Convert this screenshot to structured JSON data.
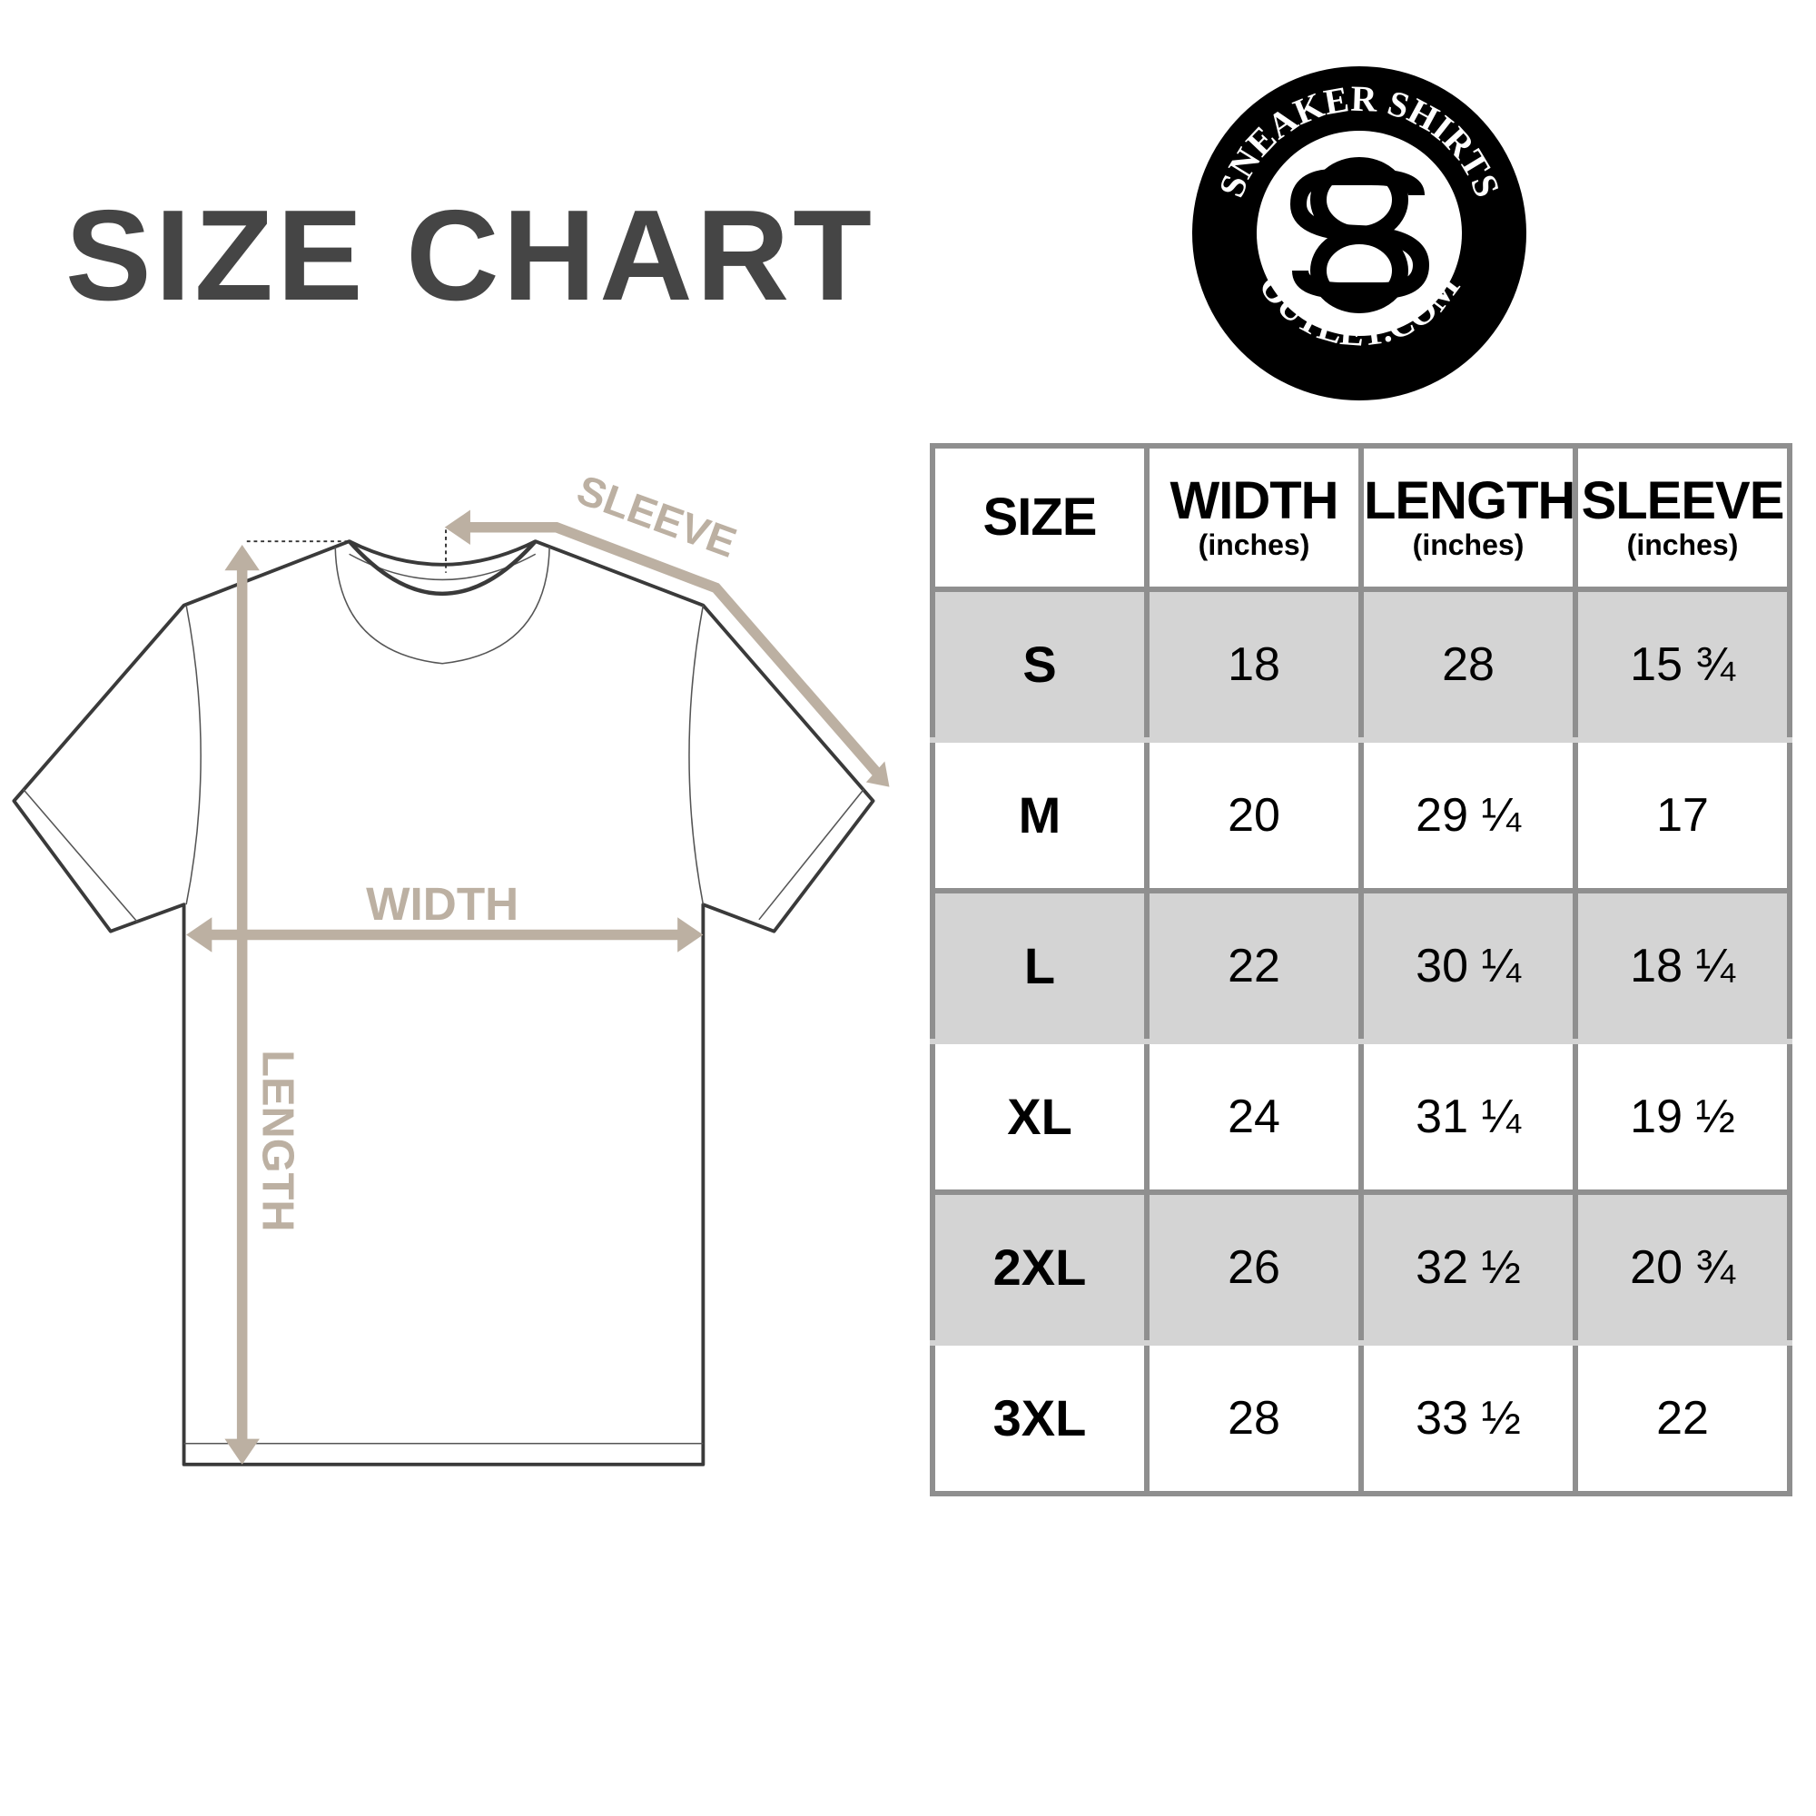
{
  "title": "SIZE CHART",
  "logo": {
    "top_text": "SNEAKER SHIRTS",
    "bottom_text": "OUTLET.COM",
    "monogram": "SO"
  },
  "diagram": {
    "sleeve_label": "SLEEVE",
    "width_label": "WIDTH",
    "length_label": "LENGTH",
    "accent_color": "#bcb0a2",
    "outline_color": "#3a3a3a"
  },
  "table": {
    "headers": [
      {
        "label": "SIZE",
        "unit": ""
      },
      {
        "label": "WIDTH",
        "unit": "(inches)"
      },
      {
        "label": "LENGTH",
        "unit": "(inches)"
      },
      {
        "label": "SLEEVE",
        "unit": "(inches)"
      }
    ],
    "rows": [
      [
        "S",
        "18",
        "28",
        "15 ¾"
      ],
      [
        "M",
        "20",
        "29 ¼",
        "17"
      ],
      [
        "L",
        "22",
        "30 ¼",
        "18 ¼"
      ],
      [
        "XL",
        "24",
        "31 ¼",
        "19 ½"
      ],
      [
        "2XL",
        "26",
        "32 ½",
        "20 ¾"
      ],
      [
        "3XL",
        "28",
        "33 ½",
        "22"
      ]
    ],
    "stripe_color": "#d4d4d4",
    "border_color": "#8f8f8f"
  }
}
